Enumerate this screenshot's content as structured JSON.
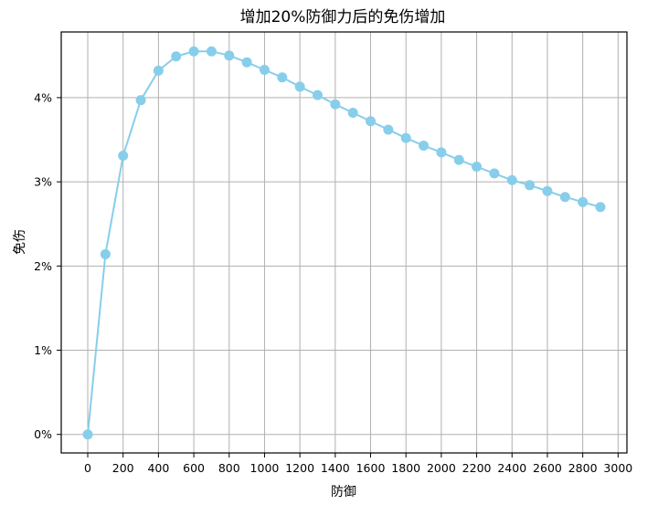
{
  "chart_data": {
    "type": "line",
    "title": "增加20%防御力后的免伤增加",
    "xlabel": "防御",
    "ylabel": "免伤",
    "x": [
      0,
      100,
      200,
      300,
      400,
      500,
      600,
      700,
      800,
      900,
      1000,
      1100,
      1200,
      1300,
      1400,
      1500,
      1600,
      1700,
      1800,
      1900,
      2000,
      2100,
      2200,
      2300,
      2400,
      2500,
      2600,
      2700,
      2800,
      2900
    ],
    "series": [
      {
        "values": [
          0.0,
          2.14,
          3.31,
          3.97,
          4.32,
          4.49,
          4.55,
          4.55,
          4.5,
          4.42,
          4.33,
          4.24,
          4.13,
          4.03,
          3.92,
          3.82,
          3.72,
          3.62,
          3.52,
          3.43,
          3.35,
          3.26,
          3.18,
          3.1,
          3.02,
          2.96,
          2.89,
          2.82,
          2.76,
          2.7
        ],
        "color": "#87ceeb"
      }
    ],
    "xlim": [
      -150,
      3050
    ],
    "ylim": [
      -0.22,
      4.78
    ],
    "xticks": [
      0,
      200,
      400,
      600,
      800,
      1000,
      1200,
      1400,
      1600,
      1800,
      2000,
      2200,
      2400,
      2600,
      2800,
      3000
    ],
    "yticks": [
      0,
      1,
      2,
      3,
      4
    ],
    "ytick_labels": [
      "0%",
      "1%",
      "2%",
      "3%",
      "4%"
    ],
    "grid": true,
    "marker": "circle"
  }
}
